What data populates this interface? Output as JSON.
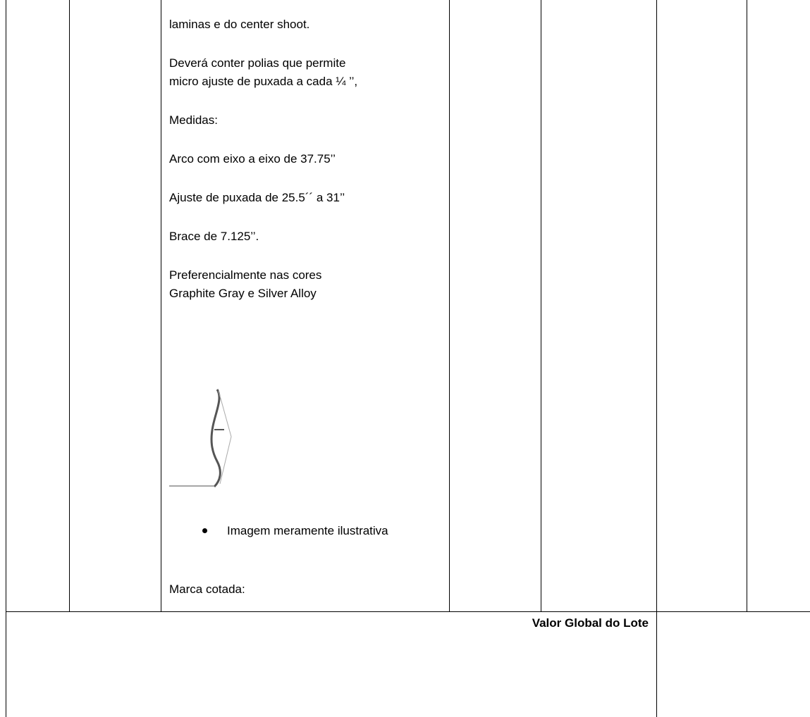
{
  "table": {
    "description": [
      "laminas e do center shoot.",
      "Deverá conter polias que permite",
      "micro ajuste de puxada a cada ¼ ’’,",
      "Medidas:",
      "Arco com eixo a eixo de 37.75’’",
      "Ajuste de puxada de 25.5´´ a 31’’",
      "Brace de 7.125’’.",
      "Preferencialmente nas cores",
      "Graphite Gray e Silver Alloy"
    ],
    "bullet": "Imagem meramente ilustrativa",
    "brand": "Marca cotada:",
    "total_label": "Valor Global do Lote"
  }
}
